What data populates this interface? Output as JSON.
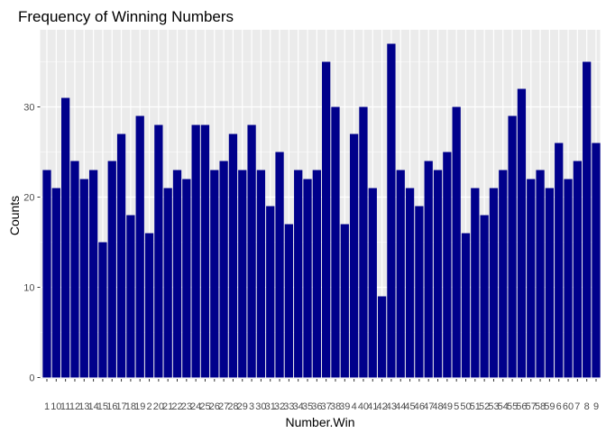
{
  "chart_data": {
    "type": "bar",
    "title": "Frequency of Winning Numbers",
    "xlabel": "Number.Win",
    "ylabel": "Counts",
    "ylim": [
      0,
      38.85
    ],
    "yticks": [
      0,
      10,
      20,
      30
    ],
    "grid": true,
    "bar_color": "#00008B",
    "panel_background": "#EBEBEB",
    "gridline_color": "#FFFFFF",
    "categories": [
      "1",
      "10",
      "11",
      "12",
      "13",
      "14",
      "15",
      "16",
      "17",
      "18",
      "19",
      "2",
      "20",
      "21",
      "22",
      "23",
      "24",
      "25",
      "26",
      "27",
      "28",
      "29",
      "3",
      "30",
      "31",
      "32",
      "33",
      "34",
      "35",
      "36",
      "37",
      "38",
      "39",
      "4",
      "40",
      "41",
      "42",
      "43",
      "44",
      "45",
      "46",
      "47",
      "48",
      "49",
      "5",
      "50",
      "51",
      "52",
      "53",
      "54",
      "55",
      "56",
      "57",
      "58",
      "59",
      "6",
      "60",
      "7",
      "8",
      "9"
    ],
    "values": [
      23,
      21,
      31,
      24,
      22,
      23,
      15,
      24,
      27,
      18,
      29,
      16,
      28,
      21,
      23,
      22,
      28,
      28,
      23,
      24,
      27,
      23,
      28,
      23,
      19,
      25,
      17,
      23,
      22,
      23,
      35,
      30,
      17,
      27,
      30,
      21,
      9,
      37,
      23,
      21,
      19,
      24,
      23,
      25,
      30,
      16,
      21,
      18,
      21,
      23,
      29,
      32,
      22,
      23,
      21,
      26,
      22,
      24,
      35,
      26
    ]
  }
}
